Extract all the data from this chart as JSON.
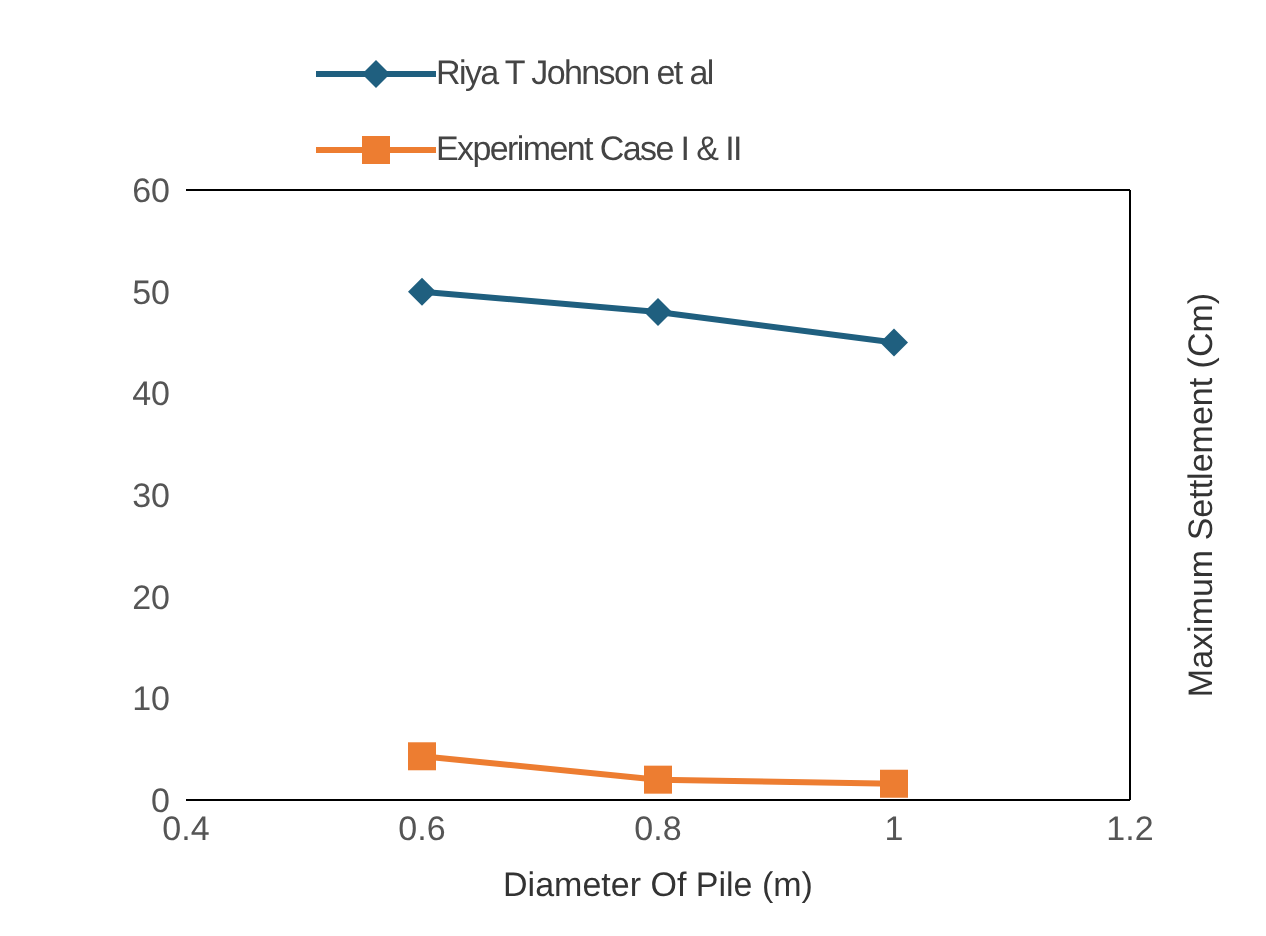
{
  "chart_data": {
    "type": "line",
    "xlabel": "Diameter Of Pile (m)",
    "ylabel": "Maximum Settlement  (Cm)",
    "x": [
      0.6,
      0.8,
      1
    ],
    "series": [
      {
        "name": "Riya T Johnson et al",
        "color": "#1f5f7f",
        "values": [
          50,
          48,
          45
        ],
        "marker": "diamond"
      },
      {
        "name": "Experiment Case I & II",
        "color": "#ed7d31",
        "values": [
          4.3,
          2,
          1.6
        ],
        "marker": "square"
      }
    ],
    "xlim": [
      0.4,
      1.2
    ],
    "xticks": [
      0.4,
      0.6,
      0.8,
      1,
      1.2
    ],
    "ylim": [
      0,
      60
    ],
    "yticks": [
      0,
      10,
      20,
      30,
      40,
      50,
      60
    ],
    "legend": "top",
    "grid": false
  }
}
